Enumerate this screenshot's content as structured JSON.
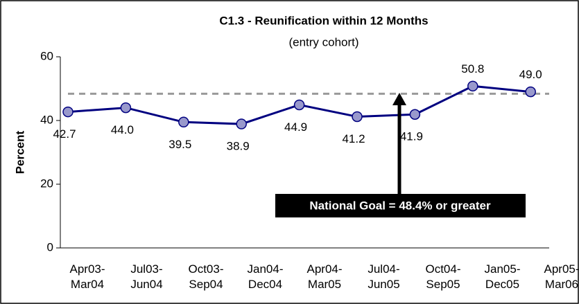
{
  "chart_data": {
    "type": "line",
    "title": "C1.3 - Reunification within 12 Months",
    "subtitle": "(entry cohort)",
    "y_label": "Percent",
    "categories": [
      "Apr03-Mar04",
      "Jul03-Jun04",
      "Oct03-Sep04",
      "Jan04-Dec04",
      "Apr04-Mar05",
      "Jul04-Jun05",
      "Oct04-Sep05",
      "Jan05-Dec05",
      "Apr05-Mar06"
    ],
    "series": [
      {
        "name": "Reunification within 12 Months",
        "color": "#000080",
        "marker_color": "#9999cc",
        "values": [
          42.7,
          44.0,
          39.5,
          38.9,
          44.9,
          41.2,
          41.9,
          50.8,
          49.0
        ],
        "value_labels": [
          "42.7",
          "44.0",
          "39.5",
          "38.9",
          "44.9",
          "41.2",
          "41.9",
          "50.8",
          "49.0"
        ]
      }
    ],
    "goal": {
      "value": 48.4,
      "color": "#999999",
      "annotation": "National Goal = 48.4% or greater"
    },
    "ylim": [
      0,
      60
    ],
    "yticks": [
      0,
      20,
      40,
      60
    ],
    "grid": false
  }
}
